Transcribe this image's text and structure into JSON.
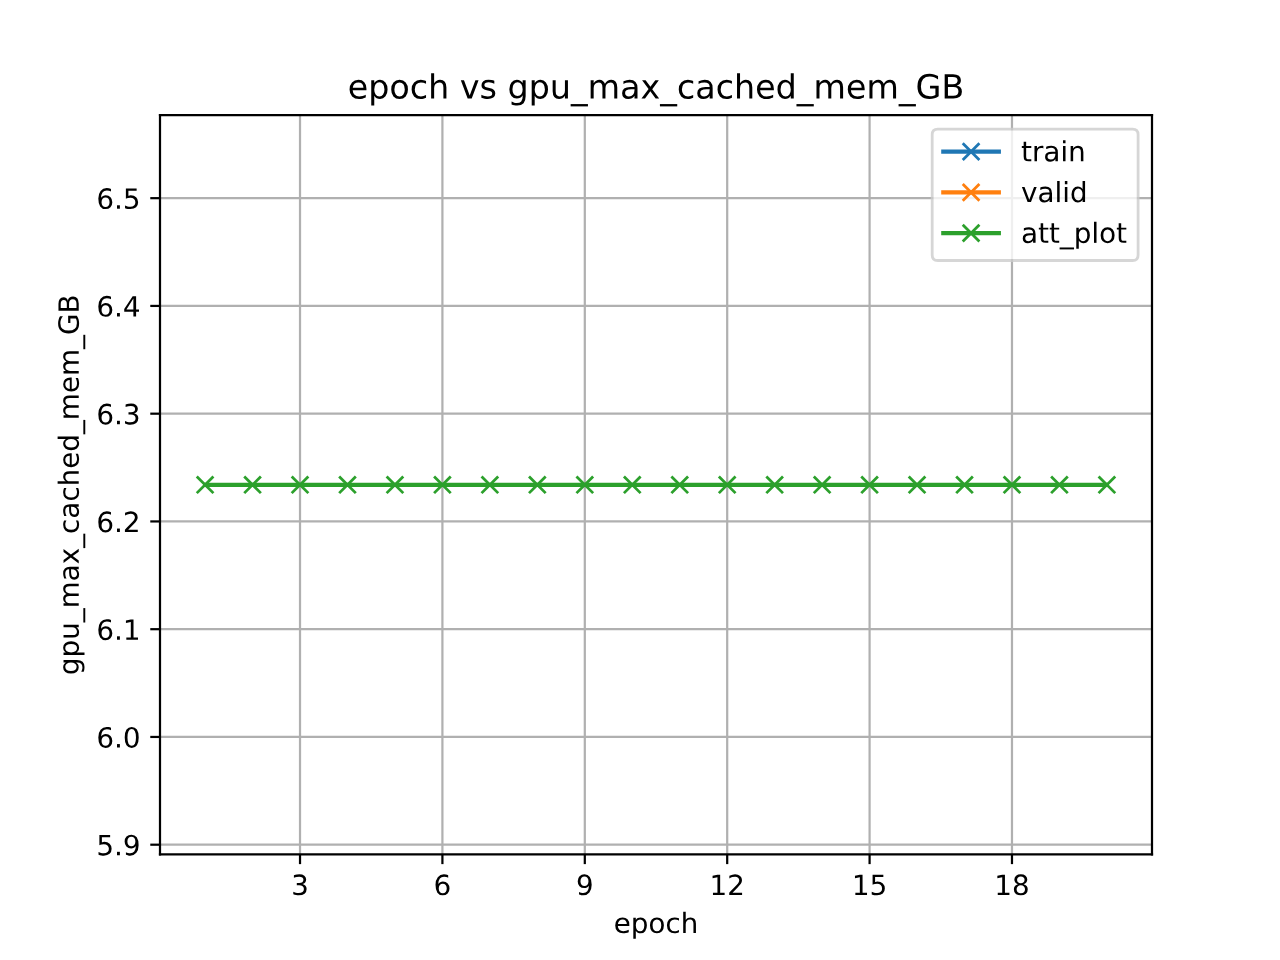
{
  "chart_data": {
    "type": "line",
    "title": "epoch vs gpu_max_cached_mem_GB",
    "xlabel": "epoch",
    "ylabel": "gpu_max_cached_mem_GB",
    "x": [
      1,
      2,
      3,
      4,
      5,
      6,
      7,
      8,
      9,
      10,
      11,
      12,
      13,
      14,
      15,
      16,
      17,
      18,
      19,
      20
    ],
    "series": [
      {
        "name": "train",
        "color": "#1f77b4",
        "values": [
          null,
          null,
          null,
          null,
          null,
          null,
          null,
          null,
          null,
          null,
          null,
          null,
          null,
          null,
          null,
          null,
          null,
          null,
          null,
          null
        ]
      },
      {
        "name": "valid",
        "color": "#ff7f0e",
        "values": [
          null,
          null,
          null,
          null,
          null,
          null,
          null,
          null,
          null,
          null,
          null,
          null,
          null,
          null,
          null,
          null,
          null,
          null,
          null,
          null
        ]
      },
      {
        "name": "att_plot",
        "color": "#2ca02c",
        "values": [
          6.234,
          6.234,
          6.234,
          6.234,
          6.234,
          6.234,
          6.234,
          6.234,
          6.234,
          6.234,
          6.234,
          6.234,
          6.234,
          6.234,
          6.234,
          6.234,
          6.234,
          6.234,
          6.234,
          6.234
        ]
      }
    ],
    "xlim": [
      0.05,
      20.95
    ],
    "xticks": [
      3,
      6,
      9,
      12,
      15,
      18
    ],
    "ylim": [
      5.891,
      6.577
    ],
    "yticks": [
      {
        "value": 5.9,
        "label": "5.9"
      },
      {
        "value": 6.0,
        "label": "6.0"
      },
      {
        "value": 6.1,
        "label": "6.1"
      },
      {
        "value": 6.2,
        "label": "6.2"
      },
      {
        "value": 6.3,
        "label": "6.3"
      },
      {
        "value": 6.4,
        "label": "6.4"
      },
      {
        "value": 6.5,
        "label": "6.5"
      }
    ],
    "grid": true,
    "legend": "top right",
    "marker": "cross",
    "line_style": "solid"
  }
}
